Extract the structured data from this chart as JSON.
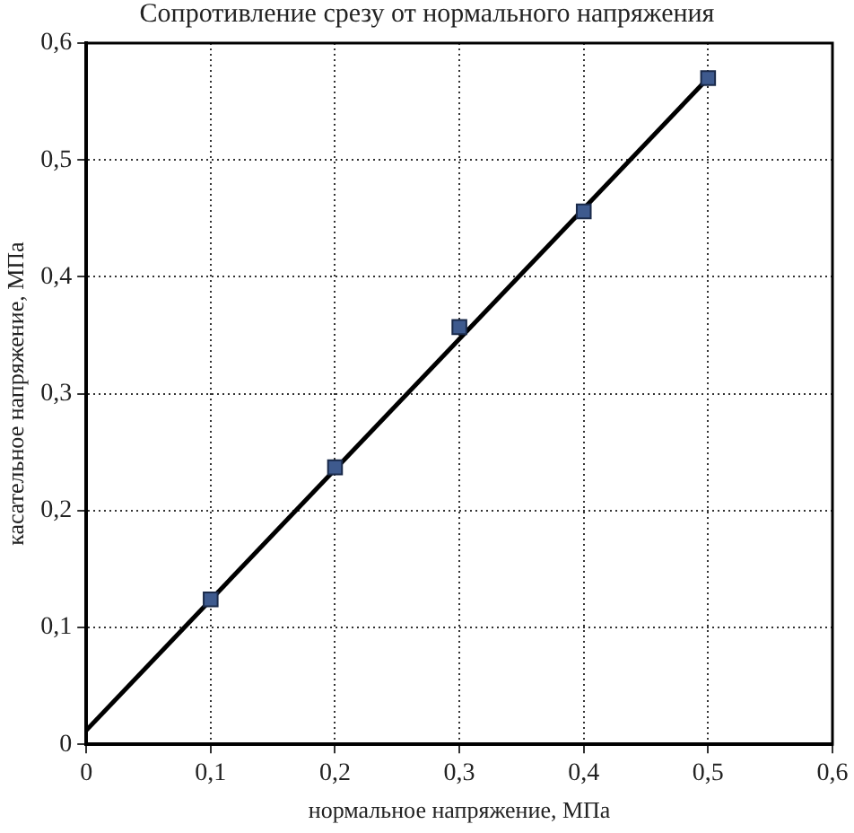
{
  "chart_data": {
    "type": "scatter",
    "title": "Сопротивление срезу от нормального напряжения",
    "xlabel": "нормальное напряжение, МПа",
    "ylabel": "касательное напряжение, МПа",
    "x": [
      0.1,
      0.2,
      0.3,
      0.4,
      0.5
    ],
    "series": [
      {
        "type": "line",
        "color": "#000000",
        "x": [
          0,
          0.5
        ],
        "values": [
          0.012,
          0.57
        ],
        "marker": "none"
      },
      {
        "type": "scatter",
        "color": "#3e5a8e",
        "values": [
          0.124,
          0.237,
          0.357,
          0.456,
          0.57
        ],
        "marker": "square"
      }
    ],
    "xlim": [
      0,
      0.6
    ],
    "ylim": [
      0,
      0.6
    ],
    "xticks": [
      {
        "value": 0,
        "label": "0"
      },
      {
        "value": 0.1,
        "label": "0,1"
      },
      {
        "value": 0.2,
        "label": "0,2"
      },
      {
        "value": 0.3,
        "label": "0,3"
      },
      {
        "value": 0.4,
        "label": "0,4"
      },
      {
        "value": 0.5,
        "label": "0,5"
      },
      {
        "value": 0.6,
        "label": "0,6"
      }
    ],
    "yticks": [
      {
        "value": 0,
        "label": "0"
      },
      {
        "value": 0.1,
        "label": "0,1"
      },
      {
        "value": 0.2,
        "label": "0,2"
      },
      {
        "value": 0.3,
        "label": "0,3"
      },
      {
        "value": 0.4,
        "label": "0,4"
      },
      {
        "value": 0.5,
        "label": "0,5"
      },
      {
        "value": 0.6,
        "label": "0,6"
      }
    ],
    "grid": true,
    "legend": false
  }
}
